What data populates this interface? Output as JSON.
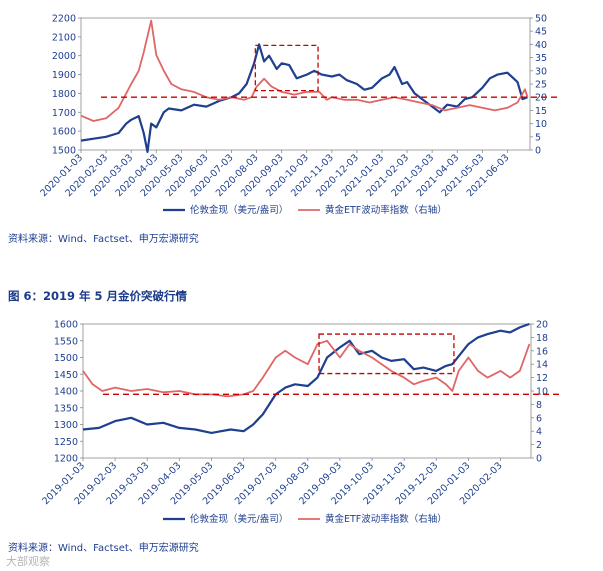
{
  "colors": {
    "gold": "#1f3f8f",
    "etf": "#e06666",
    "ref": "#cc0000",
    "text": "#1f3f8f",
    "heading": "#1a3a8a"
  },
  "figure_heading": "图 6：2019 年 5 月金价突破行情",
  "watermark": "大部观察",
  "chart_data": [
    {
      "type": "line",
      "source_note": "资料来源：Wind、Factset、申万宏源研究",
      "left_axis": {
        "ylim": [
          1500,
          2200
        ],
        "ticks": [
          "1500",
          "1600",
          "1700",
          "1800",
          "1900",
          "2000",
          "2100",
          "2200"
        ]
      },
      "right_axis": {
        "ylim": [
          0,
          50
        ],
        "ticks": [
          "0",
          "5",
          "10",
          "15",
          "20",
          "25",
          "30",
          "35",
          "40",
          "45",
          "50"
        ]
      },
      "x_ticks": [
        "2020-01-03",
        "2020-02-03",
        "2020-03-03",
        "2020-04-03",
        "2020-05-03",
        "2020-06-03",
        "2020-07-03",
        "2020-08-03",
        "2020-09-03",
        "2020-10-03",
        "2020-11-03",
        "2020-12-03",
        "2021-01-03",
        "2021-02-03",
        "2021-03-03",
        "2021-04-03",
        "2021-05-03",
        "2021-06-03"
      ],
      "x_range": [
        0,
        17.9
      ],
      "reference_line_right": 20,
      "highlight_box": {
        "x": [
          6.95,
          9.45
        ],
        "left_y": [
          1815,
          2055
        ]
      },
      "series": [
        {
          "name": "伦敦金现（美元/盎司）",
          "axis": "left",
          "x": [
            0,
            0.5,
            1,
            1.5,
            1.8,
            2,
            2.3,
            2.5,
            2.65,
            2.8,
            3,
            3.3,
            3.5,
            4,
            4.5,
            5,
            5.5,
            6,
            6.3,
            6.6,
            6.9,
            7.1,
            7.3,
            7.5,
            7.8,
            8,
            8.3,
            8.6,
            9,
            9.3,
            9.6,
            10,
            10.3,
            10.6,
            11,
            11.3,
            11.6,
            12,
            12.3,
            12.5,
            12.8,
            13,
            13.3,
            13.7,
            14,
            14.3,
            14.6,
            15,
            15.3,
            15.6,
            16,
            16.3,
            16.6,
            17,
            17.4,
            17.6,
            17.8
          ],
          "values": [
            1550,
            1560,
            1570,
            1590,
            1640,
            1660,
            1680,
            1590,
            1490,
            1640,
            1620,
            1700,
            1720,
            1710,
            1740,
            1730,
            1760,
            1780,
            1800,
            1850,
            1960,
            2060,
            1970,
            2000,
            1930,
            1960,
            1950,
            1880,
            1900,
            1920,
            1900,
            1890,
            1900,
            1870,
            1850,
            1820,
            1830,
            1880,
            1900,
            1940,
            1850,
            1860,
            1800,
            1760,
            1730,
            1700,
            1740,
            1730,
            1770,
            1780,
            1830,
            1880,
            1900,
            1910,
            1860,
            1770,
            1780
          ]
        },
        {
          "name": "黄金ETF波动率指数（右轴）",
          "axis": "right",
          "x": [
            0,
            0.5,
            1,
            1.5,
            2,
            2.3,
            2.5,
            2.8,
            3,
            3.3,
            3.6,
            4,
            4.5,
            5,
            5.5,
            6,
            6.5,
            6.8,
            7,
            7.3,
            7.6,
            8,
            8.5,
            9,
            9.5,
            9.8,
            10,
            10.5,
            11,
            11.5,
            12,
            12.5,
            13,
            13.5,
            14,
            14.5,
            15,
            15.5,
            16,
            16.5,
            17,
            17.4,
            17.7,
            17.8
          ],
          "values": [
            13,
            11,
            12,
            16,
            25,
            30,
            37,
            49,
            36,
            30,
            25,
            23,
            22,
            20,
            19,
            20,
            19,
            20,
            24,
            27,
            24,
            22,
            21,
            22,
            22,
            19,
            20,
            19,
            19,
            18,
            19,
            20,
            19,
            18,
            17,
            15,
            16,
            17,
            16,
            15,
            16,
            18,
            23,
            20
          ]
        }
      ]
    },
    {
      "type": "line",
      "source_note": "资料来源：Wind、Factset、申万宏源研究",
      "left_axis": {
        "ylim": [
          1200,
          1600
        ],
        "ticks": [
          "1200",
          "1250",
          "1300",
          "1350",
          "1400",
          "1450",
          "1500",
          "1550",
          "1600"
        ]
      },
      "right_axis": {
        "ylim": [
          0,
          20
        ],
        "ticks": [
          "0",
          "2",
          "4",
          "6",
          "8",
          "10",
          "12",
          "14",
          "16",
          "18",
          "20"
        ]
      },
      "x_ticks": [
        "2019-01-03",
        "2019-02-03",
        "2019-03-03",
        "2019-04-03",
        "2019-05-03",
        "2019-06-03",
        "2019-07-03",
        "2019-08-03",
        "2019-09-03",
        "2019-10-03",
        "2019-11-03",
        "2019-12-03",
        "2020-01-03",
        "2020-02-03"
      ],
      "x_range": [
        0,
        13.95
      ],
      "reference_line_right": 9.5,
      "highlight_box": {
        "x": [
          7.35,
          11.55
        ],
        "left_y": [
          1452,
          1570
        ]
      },
      "series": [
        {
          "name": "伦敦金现（美元/盎司）",
          "axis": "left",
          "x": [
            0,
            0.5,
            1,
            1.5,
            2,
            2.5,
            3,
            3.5,
            4,
            4.3,
            4.6,
            5,
            5.3,
            5.6,
            6,
            6.3,
            6.6,
            7,
            7.3,
            7.6,
            8,
            8.3,
            8.6,
            9,
            9.3,
            9.6,
            10,
            10.3,
            10.6,
            11,
            11.3,
            11.5,
            12,
            12.3,
            12.6,
            13,
            13.3,
            13.6,
            13.9
          ],
          "values": [
            1285,
            1290,
            1310,
            1320,
            1300,
            1305,
            1290,
            1285,
            1275,
            1280,
            1285,
            1280,
            1300,
            1330,
            1390,
            1410,
            1420,
            1415,
            1440,
            1500,
            1530,
            1550,
            1510,
            1520,
            1500,
            1490,
            1495,
            1465,
            1470,
            1460,
            1475,
            1480,
            1540,
            1560,
            1570,
            1580,
            1575,
            1590,
            1600
          ]
        },
        {
          "name": "黄金ETF波动率指数（右轴）",
          "axis": "right",
          "x": [
            0,
            0.3,
            0.6,
            1,
            1.5,
            2,
            2.5,
            3,
            3.5,
            4,
            4.5,
            5,
            5.3,
            5.6,
            6,
            6.3,
            6.6,
            7,
            7.3,
            7.6,
            8,
            8.3,
            8.6,
            9,
            9.3,
            9.6,
            10,
            10.3,
            10.6,
            11,
            11.3,
            11.5,
            11.7,
            12,
            12.3,
            12.6,
            13,
            13.3,
            13.6,
            13.9
          ],
          "values": [
            13,
            11,
            10,
            10.5,
            10,
            10.3,
            9.8,
            10,
            9.5,
            9.5,
            9.2,
            9.5,
            10,
            12,
            15,
            16,
            15,
            14,
            17,
            17.5,
            15,
            17,
            16,
            15,
            14,
            13,
            12,
            11,
            11.5,
            12,
            11,
            10,
            13,
            15,
            13,
            12,
            13,
            12,
            13,
            17
          ]
        }
      ]
    }
  ]
}
